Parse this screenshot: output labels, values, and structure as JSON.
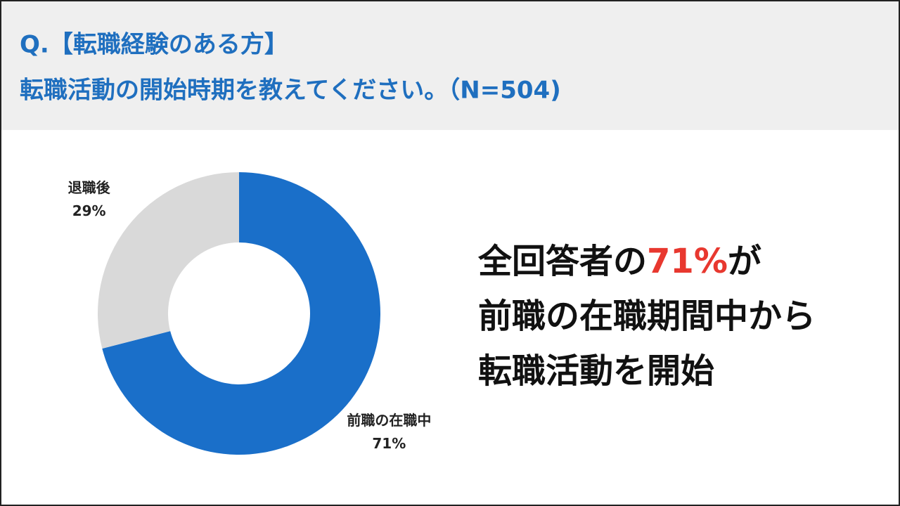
{
  "chart_data": {
    "type": "pie",
    "title": "Q.【転職経験のある方】",
    "subtitle": "転職活動の開始時期を教えてください。（N=504)",
    "categories": [
      "前職の在職中",
      "退職後"
    ],
    "values": [
      71,
      29
    ],
    "value_labels": [
      "71%",
      "29%"
    ],
    "colors": [
      "#1a6fc9",
      "#d9d9d9"
    ],
    "donut": true,
    "annotation_lines": [
      [
        "全回答者の",
        "71%",
        "が"
      ],
      [
        "前職の在職期間中から"
      ],
      [
        "転職活動を開始"
      ]
    ],
    "annotation_highlight": 1,
    "annotation_highlight_color": "#e8382f"
  }
}
